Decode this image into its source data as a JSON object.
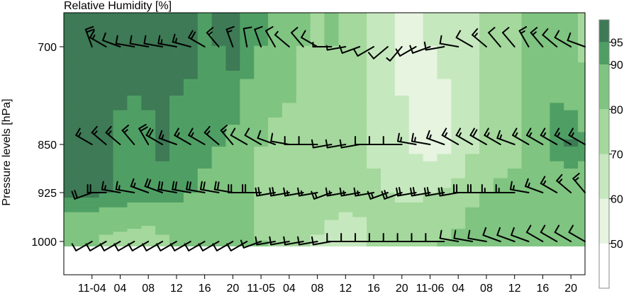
{
  "chart_data": {
    "type": "heatmap",
    "title": "Relative Humidity [%]",
    "ylabel": "Pressure levels [hPa]",
    "xlabel": "",
    "x_ticks": [
      "11-04",
      "04",
      "08",
      "12",
      "16",
      "20",
      "11-05",
      "04",
      "08",
      "12",
      "16",
      "20",
      "11-06",
      "04",
      "08",
      "12",
      "16",
      "20"
    ],
    "y_ticks": [
      "700",
      "850",
      "925",
      "1000"
    ],
    "colorbar": {
      "ticks": [
        "50",
        "60",
        "70",
        "80",
        "90",
        "95"
      ],
      "levels": [
        40,
        50,
        60,
        70,
        80,
        90,
        95,
        100
      ],
      "colors": [
        "#ffffff",
        "#e6f4e0",
        "#c6e8be",
        "#a4d89c",
        "#7fc480",
        "#4f9f64",
        "#3d7a55"
      ]
    },
    "grid": false,
    "legend": "right",
    "x_hours": [
      0,
      2,
      4,
      6,
      8,
      10,
      12,
      14,
      16,
      18,
      20,
      22,
      24,
      26,
      28,
      30,
      32,
      34,
      36,
      38,
      40,
      42,
      44,
      46,
      48,
      50,
      52,
      54,
      56,
      58,
      60,
      62,
      64,
      66,
      68,
      70
    ],
    "levels_hpa": [
      700,
      850,
      925,
      1000
    ],
    "rh": [
      [
        95,
        97,
        97,
        97,
        97,
        96,
        96,
        96,
        93,
        95,
        97,
        93,
        90,
        86,
        84,
        80,
        77,
        80,
        75,
        74,
        65,
        60,
        58,
        58,
        60,
        61,
        62,
        66,
        72,
        76,
        78,
        80,
        82,
        84,
        80,
        78
      ],
      [
        95,
        95,
        94,
        93,
        94,
        96,
        94,
        93,
        92,
        90,
        88,
        84,
        80,
        78,
        77,
        76,
        75,
        73,
        71,
        70,
        68,
        66,
        62,
        58,
        55,
        58,
        62,
        68,
        70,
        74,
        78,
        84,
        90,
        94,
        96,
        92
      ],
      [
        96,
        95,
        95,
        95,
        94,
        93,
        92,
        90,
        88,
        86,
        83,
        81,
        79,
        78,
        78,
        79,
        80,
        78,
        76,
        74,
        72,
        70,
        68,
        68,
        70,
        72,
        74,
        78,
        80,
        82,
        82,
        80,
        80,
        82,
        84,
        86
      ],
      [
        80,
        78,
        76,
        74,
        74,
        78,
        80,
        82,
        84,
        86,
        84,
        82,
        80,
        78,
        76,
        72,
        68,
        64,
        62,
        66,
        70,
        74,
        76,
        78,
        78,
        80,
        82,
        84,
        86,
        86,
        84,
        82,
        82,
        84,
        86,
        88
      ]
    ],
    "wind_dir_deg": [
      [
        340,
        300,
        290,
        280,
        280,
        280,
        280,
        285,
        300,
        320,
        340,
        350,
        340,
        330,
        310,
        320,
        300,
        270,
        260,
        250,
        240,
        230,
        220,
        240,
        250,
        260,
        280,
        300,
        310,
        320,
        320,
        330,
        320,
        310,
        300,
        290
      ],
      [
        300,
        310,
        310,
        320,
        330,
        300,
        290,
        300,
        300,
        310,
        320,
        300,
        300,
        290,
        280,
        270,
        270,
        260,
        260,
        260,
        270,
        270,
        270,
        280,
        280,
        290,
        300,
        300,
        300,
        300,
        290,
        300,
        300,
        300,
        300,
        300
      ],
      [
        250,
        270,
        280,
        280,
        290,
        290,
        280,
        280,
        280,
        280,
        280,
        270,
        270,
        260,
        260,
        260,
        260,
        250,
        260,
        260,
        260,
        250,
        250,
        260,
        260,
        260,
        260,
        270,
        270,
        270,
        270,
        280,
        290,
        300,
        310,
        320
      ],
      [
        240,
        240,
        240,
        240,
        240,
        240,
        240,
        240,
        240,
        240,
        240,
        240,
        250,
        260,
        260,
        260,
        260,
        260,
        270,
        270,
        270,
        270,
        270,
        270,
        270,
        270,
        280,
        280,
        280,
        290,
        290,
        290,
        300,
        300,
        300,
        300
      ]
    ],
    "wind_speed_kt": [
      [
        20,
        15,
        10,
        10,
        10,
        10,
        15,
        15,
        20,
        15,
        15,
        10,
        10,
        10,
        5,
        10,
        10,
        5,
        5,
        10,
        10,
        10,
        5,
        10,
        10,
        10,
        10,
        10,
        15,
        10,
        10,
        15,
        15,
        10,
        10,
        10
      ],
      [
        15,
        15,
        15,
        15,
        20,
        20,
        15,
        15,
        15,
        15,
        15,
        10,
        10,
        10,
        10,
        10,
        10,
        10,
        10,
        10,
        10,
        10,
        10,
        15,
        15,
        15,
        15,
        15,
        20,
        15,
        15,
        15,
        15,
        15,
        15,
        15
      ],
      [
        20,
        20,
        15,
        15,
        15,
        20,
        20,
        20,
        20,
        20,
        20,
        20,
        20,
        20,
        20,
        15,
        15,
        15,
        15,
        15,
        15,
        15,
        20,
        20,
        20,
        20,
        20,
        20,
        20,
        15,
        15,
        15,
        15,
        15,
        15,
        15
      ],
      [
        10,
        10,
        10,
        10,
        10,
        10,
        10,
        10,
        10,
        10,
        10,
        10,
        10,
        10,
        10,
        10,
        10,
        10,
        10,
        10,
        10,
        10,
        10,
        10,
        10,
        10,
        10,
        10,
        10,
        10,
        10,
        10,
        10,
        10,
        10,
        10
      ]
    ]
  }
}
